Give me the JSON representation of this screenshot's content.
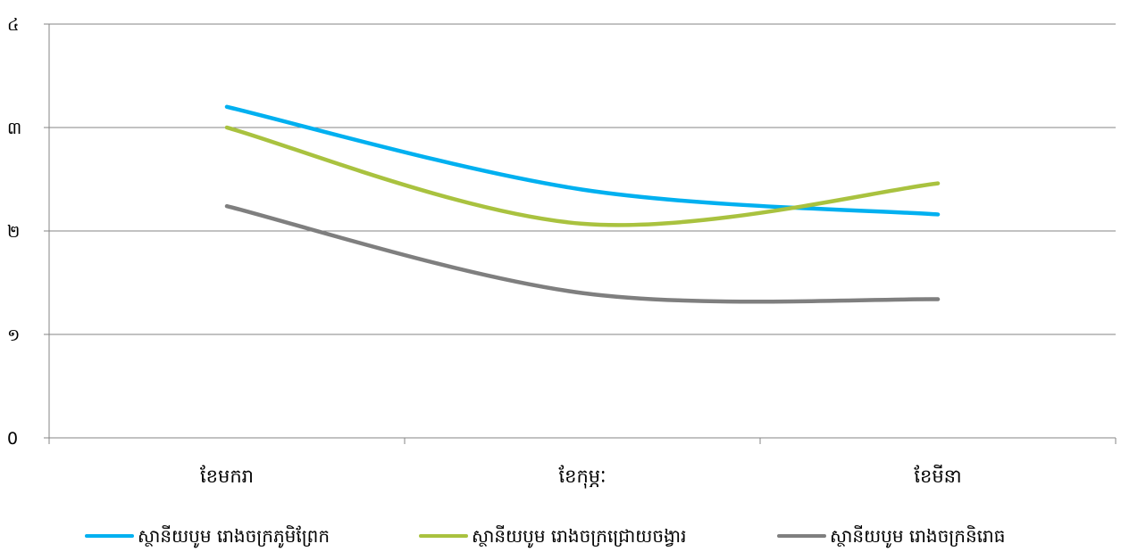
{
  "chart_data": {
    "type": "line",
    "categories": [
      "ខែមករា",
      "ខែកុម្ភៈ",
      "ខែមីនា"
    ],
    "y_tick_labels": [
      "0",
      "១",
      "២",
      "៣",
      "៤"
    ],
    "ylim": [
      0,
      4
    ],
    "y_ticks": [
      0,
      1,
      2,
      3,
      4
    ],
    "grid": true,
    "smooth": true,
    "legend_position": "bottom",
    "series": [
      {
        "name": "ស្ថានីយបូម រោងចក្រភូមិព្រែក",
        "color": "#00b0f0",
        "values": [
          3.2,
          2.4,
          2.16
        ]
      },
      {
        "name": "ស្ថានីយបូម រោងចក្រជ្រោយចង្វារ",
        "color": "#a9c23f",
        "values": [
          3.0,
          2.07,
          2.46
        ]
      },
      {
        "name": "ស្ថានីយបូម រោងចក្រនិរោធ",
        "color": "#7f7f7f",
        "values": [
          2.24,
          1.4,
          1.34
        ]
      }
    ]
  }
}
